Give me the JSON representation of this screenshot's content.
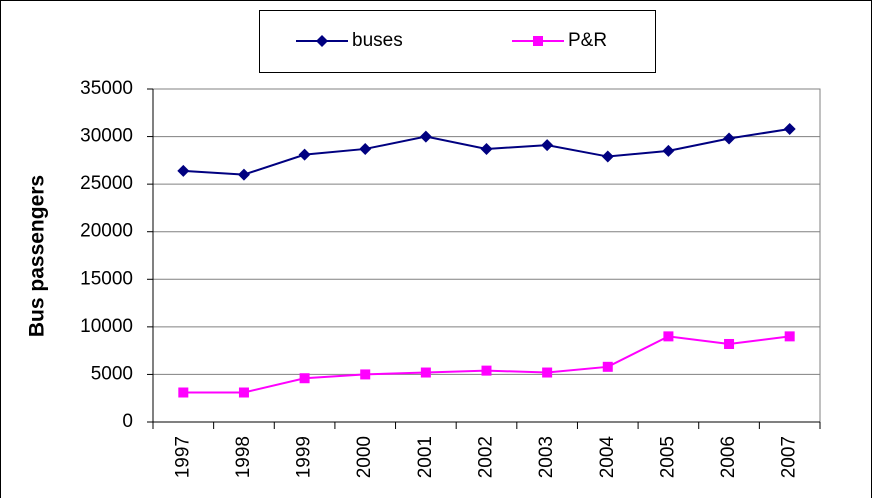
{
  "chart_data": {
    "type": "line",
    "y_label": "Bus passengers",
    "categories": [
      "1997",
      "1998",
      "1999",
      "2000",
      "2001",
      "2002",
      "2003",
      "2004",
      "2005",
      "2006",
      "2007"
    ],
    "series": [
      {
        "name": "buses",
        "color": "#000080",
        "marker": "diamond",
        "values": [
          26400,
          26000,
          28100,
          28700,
          30000,
          28700,
          29100,
          27900,
          28500,
          29800,
          30800
        ]
      },
      {
        "name": "P&R",
        "color": "#ff00ff",
        "marker": "square",
        "values": [
          3100,
          3100,
          4600,
          5000,
          5200,
          5400,
          5200,
          5800,
          9000,
          8200,
          9000
        ]
      }
    ],
    "ylim": [
      0,
      35000
    ],
    "yticks": [
      0,
      5000,
      10000,
      15000,
      20000,
      25000,
      30000,
      35000
    ],
    "grid": true,
    "legend": "top"
  }
}
